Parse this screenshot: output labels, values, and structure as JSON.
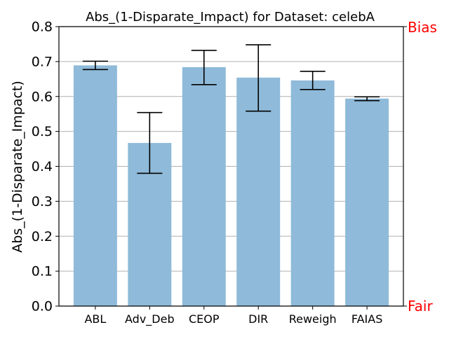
{
  "chart_data": {
    "type": "bar",
    "title": "Abs_(1-Disparate_Impact) for Dataset: celebA",
    "xlabel": "",
    "ylabel": "Abs_(1-Disparate_Impact)",
    "categories": [
      "ABL",
      "Adv_Deb",
      "CEOP",
      "DIR",
      "Reweigh",
      "FAIAS"
    ],
    "values": [
      0.689,
      0.467,
      0.684,
      0.654,
      0.646,
      0.594
    ],
    "error_low": [
      0.677,
      0.38,
      0.634,
      0.558,
      0.62,
      0.588
    ],
    "error_high": [
      0.701,
      0.554,
      0.732,
      0.748,
      0.672,
      0.599
    ],
    "ylim": [
      0.0,
      0.8
    ],
    "yticks": [
      "0.0",
      "0.1",
      "0.2",
      "0.3",
      "0.4",
      "0.5",
      "0.6",
      "0.7",
      "0.8"
    ],
    "grid": "y",
    "bar_color": "#8fbad9",
    "right_axis_labels": {
      "top": "Bias",
      "bottom": "Fair",
      "color": "#ff0000"
    }
  }
}
